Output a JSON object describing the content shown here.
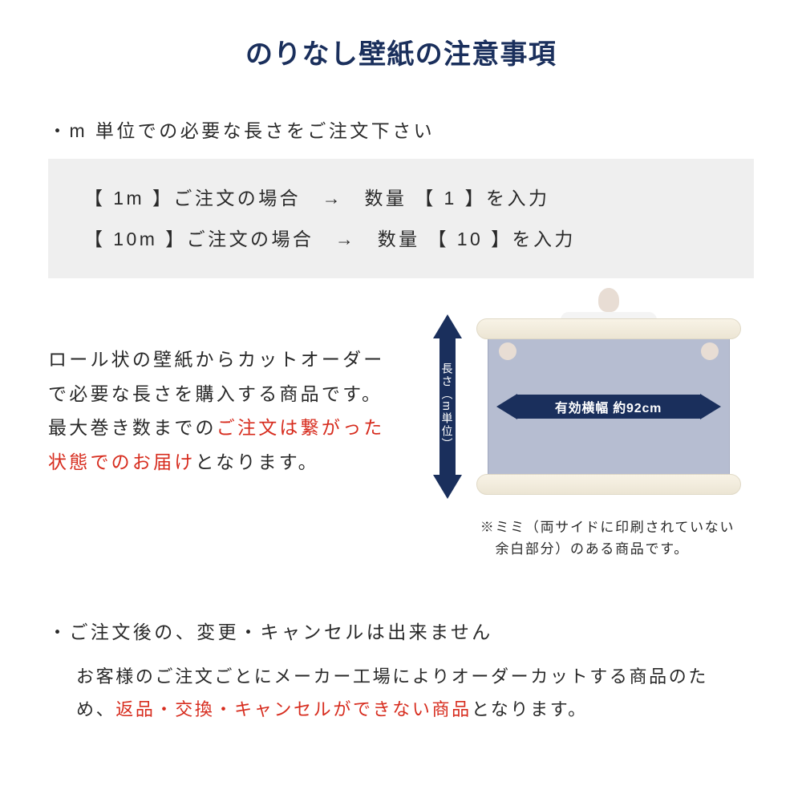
{
  "colors": {
    "heading": "#1a2f5c",
    "text": "#292929",
    "red": "#d72c1e",
    "box_bg": "#efefef",
    "arrow": "#1a2f5c",
    "sheet": "#b6bdd1",
    "roll": "#f4eee0"
  },
  "title": "のりなし壁紙の注意事項",
  "bullet1": "・m 単位での必要な長さをご注文下さい",
  "box": {
    "line1": "【 1m 】ご注文の場合　→　数量 【 1 】を入力",
    "line2": "【 10m 】ご注文の場合　→　数量 【 10 】を入力"
  },
  "mid": {
    "p1": "ロール状の壁紙からカットオーダーで必要な長さを購入する商品です。最大巻き数までの",
    "p2_red": "ご注文は繋がった状態でのお届け",
    "p3": "となります。"
  },
  "diagram": {
    "v_label": "長さ（m単位）",
    "h_label": "有効横幅 約92cm"
  },
  "note": {
    "l1": "※ミミ（両サイドに印刷されていない",
    "l2": "　余白部分）のある商品です。"
  },
  "bullet2": "・ご注文後の、変更・キャンセルは出来ません",
  "cancel": {
    "p1": "お客様のご注文ごとにメーカー工場によりオーダーカットする商品のため、",
    "p2_red": "返品・交換・キャンセルができない商品",
    "p3": "となります。"
  }
}
